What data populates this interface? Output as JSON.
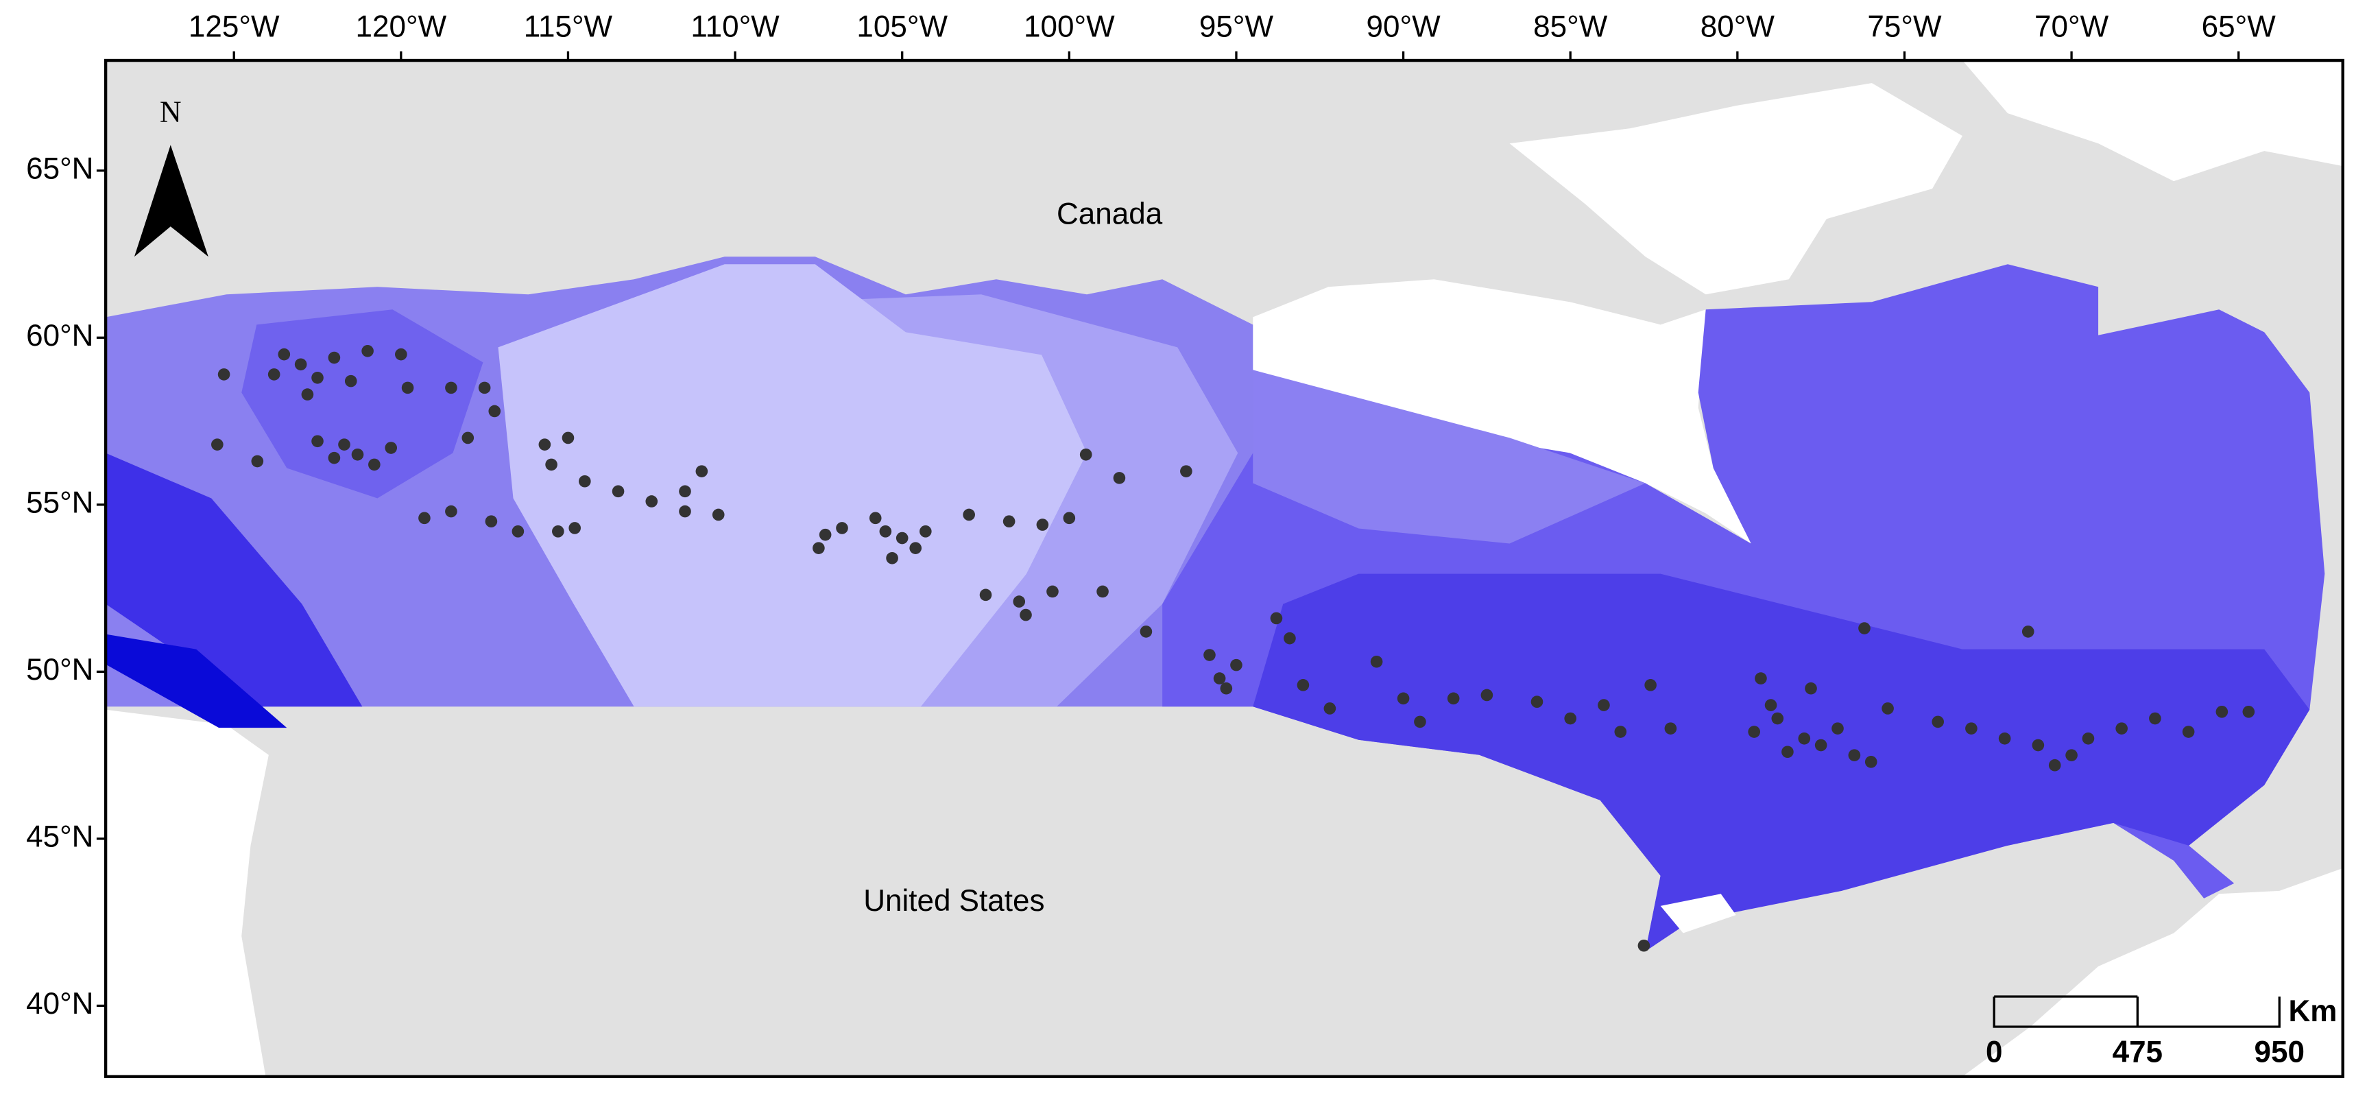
{
  "map": {
    "xlim": [
      -128.84,
      -61.88
    ],
    "ylim": [
      37.88,
      68.3
    ],
    "lon_ticks": [
      {
        "value": -125,
        "label": "125°W"
      },
      {
        "value": -120,
        "label": "120°W"
      },
      {
        "value": -115,
        "label": "115°W"
      },
      {
        "value": -110,
        "label": "110°W"
      },
      {
        "value": -105,
        "label": "105°W"
      },
      {
        "value": -100,
        "label": "100°W"
      },
      {
        "value": -95,
        "label": "95°W"
      },
      {
        "value": -90,
        "label": "90°W"
      },
      {
        "value": -85,
        "label": "85°W"
      },
      {
        "value": -80,
        "label": "80°W"
      },
      {
        "value": -75,
        "label": "75°W"
      },
      {
        "value": -70,
        "label": "70°W"
      },
      {
        "value": -65,
        "label": "65°W"
      }
    ],
    "lat_ticks": [
      {
        "value": 40,
        "label": "40°N"
      },
      {
        "value": 45,
        "label": "45°N"
      },
      {
        "value": 50,
        "label": "50°N"
      },
      {
        "value": 55,
        "label": "55°N"
      },
      {
        "value": 60,
        "label": "60°N"
      },
      {
        "value": 65,
        "label": "65°N"
      }
    ],
    "region_labels": [
      "Canada",
      "United States"
    ],
    "north_label": "N",
    "scale_bar": {
      "labels": [
        "0",
        "475",
        "950"
      ],
      "unit": "Km"
    },
    "point_color": "#333333",
    "occurrences": {
      "lon": [
        -123.5,
        -123,
        -122.5,
        -123.8,
        -122,
        -121.5,
        -122.8,
        -121,
        -120,
        -119.8,
        -122,
        -121.3,
        -121.7,
        -120.8,
        -122.5,
        -120.3,
        -125.3,
        -125.5,
        -124.3,
        -118.5,
        -117.5,
        -117.2,
        -118,
        -115.7,
        -115.5,
        -115,
        -114.5,
        -113.5,
        -112.5,
        -111.5,
        -110.5,
        -119.3,
        -118.5,
        -117.3,
        -116.5,
        -115.3,
        -114.8,
        -111.5,
        -111,
        -107.3,
        -106.8,
        -105.5,
        -105,
        -104.6,
        -105.8,
        -104.3,
        -105.3,
        -107.5,
        -103,
        -101.8,
        -100.8,
        -100,
        -102.5,
        -101.5,
        -100.5,
        -101.3,
        -99.5,
        -98.5,
        -96.5,
        -99,
        -97.7,
        -95.8,
        -95.5,
        -95,
        -95.3,
        -93.8,
        -93.4,
        -93,
        -92.2,
        -90.8,
        -90,
        -89.5,
        -88.5,
        -87.5,
        -86,
        -85,
        -84,
        -83.5,
        -82,
        -82.6,
        -82.8,
        -79.5,
        -78.8,
        -78,
        -77.5,
        -78.5,
        -79,
        -77,
        -76.5,
        -76,
        -79.3,
        -77.8,
        -76.2,
        -75.5,
        -74,
        -73,
        -72,
        -71,
        -70,
        -69.5,
        -68.5,
        -67.5,
        -66.5,
        -65.5,
        -64.7,
        -71.3,
        -70.5
      ],
      "lat": [
        59.5,
        59.2,
        58.8,
        58.9,
        59.4,
        58.7,
        58.3,
        59.6,
        59.5,
        58.5,
        56.4,
        56.5,
        56.8,
        56.2,
        56.9,
        56.7,
        58.9,
        56.8,
        56.3,
        58.5,
        58.5,
        57.8,
        57,
        56.8,
        56.2,
        57,
        55.7,
        55.4,
        55.1,
        54.8,
        54.7,
        54.6,
        54.8,
        54.5,
        54.2,
        54.2,
        54.3,
        55.4,
        56,
        54.1,
        54.3,
        54.2,
        54,
        53.7,
        54.6,
        54.2,
        53.4,
        53.7,
        54.7,
        54.5,
        54.4,
        54.6,
        52.3,
        52.1,
        52.4,
        51.7,
        56.5,
        55.8,
        56,
        52.4,
        51.2,
        50.5,
        49.8,
        50.2,
        49.5,
        51.6,
        51,
        49.6,
        48.9,
        50.3,
        49.2,
        48.5,
        49.2,
        49.3,
        49.1,
        48.6,
        49,
        48.2,
        48.3,
        49.6,
        41.8,
        48.2,
        48.6,
        48,
        47.8,
        47.6,
        49,
        48.3,
        47.5,
        47.3,
        49.8,
        49.5,
        51.3,
        48.9,
        48.5,
        48.3,
        48,
        47.8,
        47.5,
        48,
        48.3,
        48.6,
        48.2,
        48.8,
        48.8,
        51.2,
        47.2
      ]
    }
  }
}
